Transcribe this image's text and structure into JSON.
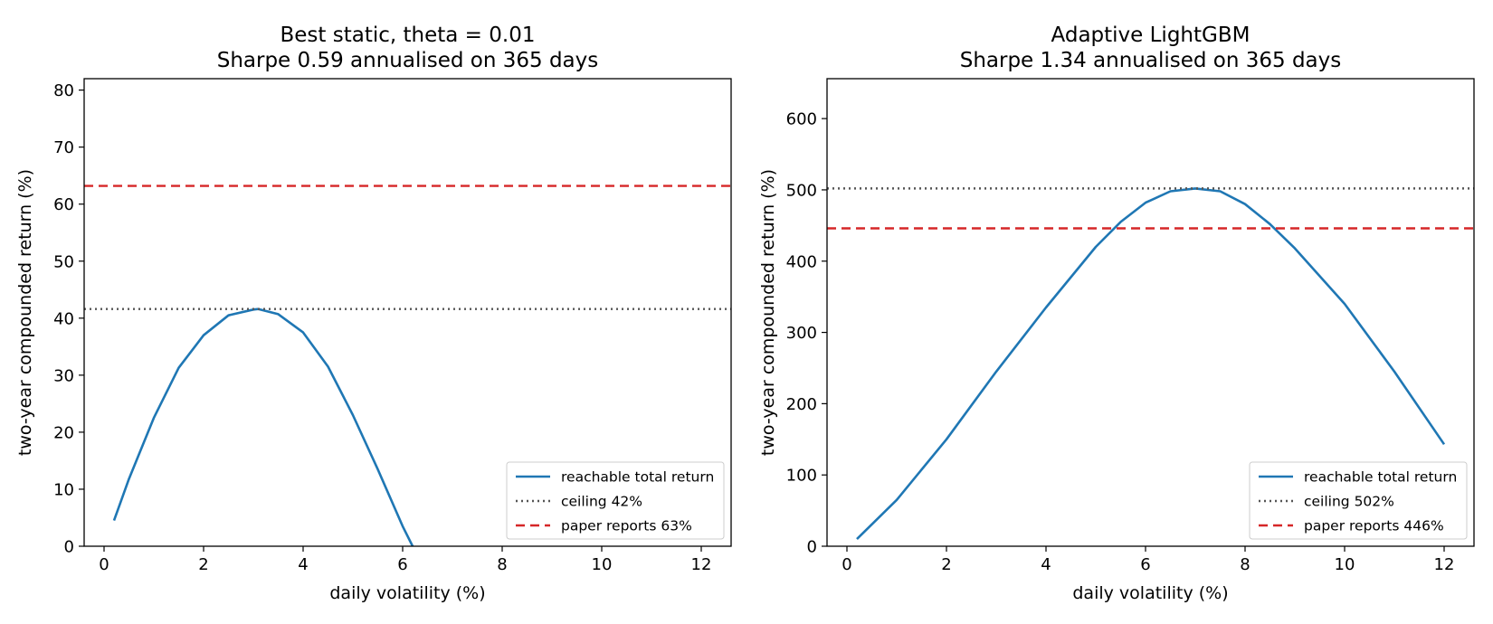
{
  "colors": {
    "curve": "#1f77b4",
    "ceiling": "#555555",
    "paper": "#d62728",
    "axes": "#000000"
  },
  "chart_data": [
    {
      "type": "line",
      "title": "Best static, theta = 0.01",
      "subtitle": "Sharpe 0.59 annualised on 365 days",
      "xlabel": "daily volatility (%)",
      "ylabel": "two-year compounded return (%)",
      "xlim": [
        -0.4,
        12.6
      ],
      "ylim": [
        0,
        82
      ],
      "xticks": [
        0,
        2,
        4,
        6,
        8,
        10,
        12
      ],
      "yticks": [
        0,
        10,
        20,
        30,
        40,
        50,
        60,
        70,
        80
      ],
      "grid": false,
      "legend_position": "lower-right",
      "series": [
        {
          "name": "reachable total return",
          "style": "solid",
          "x": [
            0.2,
            0.5,
            1.0,
            1.5,
            2.0,
            2.5,
            3.0,
            3.1,
            3.5,
            4.0,
            4.5,
            5.0,
            5.5,
            6.0,
            6.2
          ],
          "y": [
            4.5,
            11.8,
            22.5,
            31.3,
            37.0,
            40.5,
            41.5,
            41.6,
            40.7,
            37.5,
            31.5,
            23.0,
            13.5,
            3.5,
            0.0
          ]
        },
        {
          "name": "ceiling 42%",
          "style": "dotted",
          "y": 41.6
        },
        {
          "name": "paper reports 63%",
          "style": "dashed",
          "y": 63.2
        }
      ]
    },
    {
      "type": "line",
      "title": "Adaptive LightGBM",
      "subtitle": "Sharpe 1.34 annualised on 365 days",
      "xlabel": "daily volatility (%)",
      "ylabel": "two-year compounded return (%)",
      "xlim": [
        -0.4,
        12.6
      ],
      "ylim": [
        0,
        656
      ],
      "xticks": [
        0,
        2,
        4,
        6,
        8,
        10,
        12
      ],
      "yticks": [
        0,
        100,
        200,
        300,
        400,
        500,
        600
      ],
      "grid": false,
      "legend_position": "lower-right",
      "series": [
        {
          "name": "reachable total return",
          "style": "solid",
          "x": [
            0.2,
            1.0,
            2.0,
            3.0,
            4.0,
            5.0,
            5.5,
            6.0,
            6.5,
            7.0,
            7.5,
            8.0,
            8.5,
            9.0,
            10.0,
            11.0,
            12.0
          ],
          "y": [
            10,
            65,
            150,
            245,
            335,
            420,
            455,
            482,
            498,
            502,
            498,
            480,
            452,
            418,
            340,
            245,
            143
          ]
        },
        {
          "name": "ceiling 502%",
          "style": "dotted",
          "y": 502
        },
        {
          "name": "paper reports 446%",
          "style": "dashed",
          "y": 446
        }
      ]
    }
  ]
}
